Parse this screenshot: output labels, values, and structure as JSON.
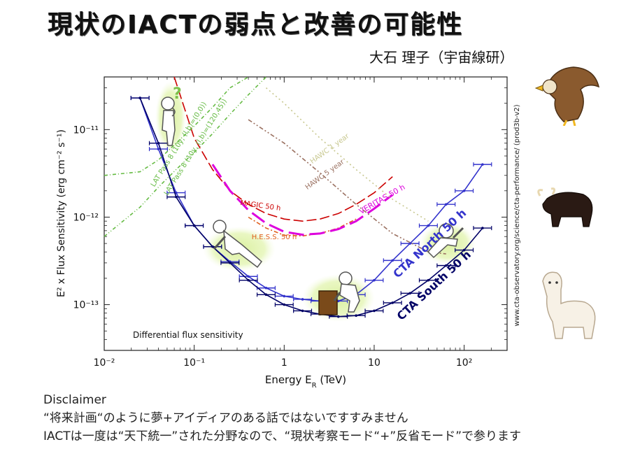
{
  "slide": {
    "title": "現状のIACTの弱点と改善の可能性",
    "author": "大石 理子（宇宙線研）"
  },
  "disclaimer": {
    "heading": "Disclaimer",
    "line1": "“将来計画“のように夢+アイディアのある話ではないですすみません",
    "line2": "IACTは一度は“天下統一”された分野なので、“現状考察モード“+”反省モード”で参ります"
  },
  "chart_data": {
    "type": "line",
    "xscale": "log",
    "yscale": "log",
    "xlim": [
      0.01,
      300
    ],
    "ylim": [
      3e-14,
      4e-11
    ],
    "xlabel": "Energy E",
    "xlabel_sub": "R",
    "xlabel_unit": " (TeV)",
    "ylabel": "E² x Flux Sensitivity (erg cm⁻² s⁻¹)",
    "x_ticks": [
      {
        "value": 0.01,
        "label": "10⁻²"
      },
      {
        "value": 0.1,
        "label": "10⁻¹"
      },
      {
        "value": 1,
        "label": "1"
      },
      {
        "value": 10,
        "label": "10"
      },
      {
        "value": 100,
        "label": "10²"
      }
    ],
    "y_ticks": [
      {
        "value": 1e-13,
        "label": "10⁻¹³"
      },
      {
        "value": 1e-12,
        "label": "10⁻¹²"
      },
      {
        "value": 1e-11,
        "label": "10⁻¹¹"
      }
    ],
    "inner_label": "Differential flux sensitivity",
    "side_label": "www.cta-observatory.org/science/cta-performance/ (prod3b-v2)",
    "series": [
      {
        "name": "CTA North 50 h",
        "label": "CTA North 50 h",
        "color": "#3333cc",
        "x": [
          0.025,
          0.04,
          0.063,
          0.1,
          0.16,
          0.25,
          0.4,
          0.63,
          1.0,
          1.6,
          2.5,
          4.0,
          6.3,
          10,
          16,
          25,
          40,
          63,
          100,
          160
        ],
        "y": [
          2.3e-11,
          6e-12,
          1.9e-12,
          8e-13,
          4.6e-13,
          3.1e-13,
          2.1e-13,
          1.55e-13,
          1.25e-13,
          1.15e-13,
          1.1e-13,
          1.1e-13,
          1.3e-13,
          1.9e-13,
          3.2e-13,
          5e-13,
          8e-13,
          1.4e-12,
          2e-12,
          4e-12
        ]
      },
      {
        "name": "CTA South 50 h",
        "label": "CTA South 50 h",
        "color": "#000066",
        "x": [
          0.025,
          0.04,
          0.063,
          0.1,
          0.16,
          0.25,
          0.4,
          0.63,
          1.0,
          1.6,
          2.5,
          4.0,
          6.3,
          10,
          16,
          25,
          40,
          63,
          100,
          160
        ],
        "y": [
          2.3e-11,
          7e-12,
          1.7e-12,
          8e-13,
          4.6e-13,
          3e-13,
          1.9e-13,
          1.3e-13,
          1e-13,
          8.5e-14,
          7.8e-14,
          7.3e-14,
          7.5e-14,
          8.5e-14,
          1.05e-13,
          1.35e-13,
          1.9e-13,
          2.8e-13,
          4.2e-13,
          7.5e-13
        ]
      },
      {
        "name": "MAGIC 50 h",
        "label": "MAGIC 50 h",
        "color": "#cc0000",
        "dash": "14 5",
        "x": [
          0.06,
          0.1,
          0.16,
          0.25,
          0.4,
          0.63,
          1.0,
          1.6,
          2.5,
          4.0,
          6.3,
          10,
          16
        ],
        "y": [
          4e-11,
          8e-12,
          3.5e-12,
          2e-12,
          1.4e-12,
          1.1e-12,
          9.5e-13,
          9e-13,
          9.5e-13,
          1.1e-12,
          1.4e-12,
          1.9e-12,
          2.9e-12
        ]
      },
      {
        "name": "H.E.S.S. 50 h",
        "label": "H.E.S.S. 50 h",
        "color": "#e06020",
        "dash": "6 3 2 3",
        "x": [
          0.4,
          0.63,
          1.0,
          1.6,
          2.5,
          4.0,
          6.3
        ],
        "y": [
          1e-12,
          7.5e-13,
          6.2e-13,
          6.1e-13,
          6.5e-13,
          7.5e-13,
          9.5e-13
        ]
      },
      {
        "name": "VERITAS 50 h",
        "label": "VERITAS 50 h",
        "color": "#dd00dd",
        "dash": "22 8",
        "x": [
          0.16,
          0.25,
          0.4,
          0.63,
          1.0,
          1.6,
          2.5,
          4.0,
          6.3,
          10,
          16
        ],
        "y": [
          4e-12,
          2e-12,
          1.2e-12,
          8.5e-13,
          6.8e-13,
          6.3e-13,
          6.5e-13,
          7.3e-13,
          9e-13,
          1.25e-12,
          1.8e-12
        ]
      },
      {
        "name": "LAT Pass 8 (10y, (l,b)=(0,0))",
        "label": "LAT Pass 8 (10y, (l,b)=(0,0))",
        "color": "#66bb44",
        "dash": "5 3 1 3",
        "x": [
          0.01,
          0.025,
          0.04,
          0.063,
          0.1,
          0.16,
          0.25,
          0.4
        ],
        "y": [
          3e-12,
          3.3e-12,
          4.5e-12,
          7e-12,
          1.1e-11,
          1.8e-11,
          3e-11,
          4e-11
        ]
      },
      {
        "name": "LAT Pass 8 (10y, (l,b)=(120,45))",
        "label": "LAT Pass 8 (10y, (l,b)=(120,45))",
        "color": "#66bb44",
        "dash": "5 3 1 3 1 3",
        "x": [
          0.01,
          0.025,
          0.04,
          0.063,
          0.1,
          0.16,
          0.25,
          0.4,
          0.63
        ],
        "y": [
          6e-13,
          1.3e-12,
          2.2e-12,
          3.5e-12,
          5.5e-12,
          9e-12,
          1.5e-11,
          2.5e-11,
          4e-11
        ]
      },
      {
        "name": "HAWC 1 year",
        "label": "HAWC 1 year",
        "color": "#c8c890",
        "dash": "2 4",
        "x": [
          0.63,
          1.0,
          2.5,
          6.3,
          16,
          40
        ],
        "y": [
          3e-11,
          2e-11,
          8e-12,
          3.5e-12,
          1.6e-12,
          9e-13
        ]
      },
      {
        "name": "HAWC 5 year",
        "label": "HAWC 5 year",
        "color": "#9a7060",
        "dash": "6 3 2 3 2 3",
        "x": [
          0.4,
          1.0,
          2.5,
          6.3,
          16,
          40,
          63
        ],
        "y": [
          1.3e-11,
          7e-12,
          3.2e-12,
          1.4e-12,
          6.5e-13,
          4e-13,
          3.8e-13
        ]
      }
    ]
  },
  "icons": {
    "question_mark": "?",
    "figures": [
      "thinking-figure-icon",
      "sliding-figure-icon",
      "hammering-figure-icon",
      "falling-figure-icon"
    ],
    "animals": [
      "eagle-icon",
      "yak-icon",
      "alpaca-icon"
    ]
  }
}
